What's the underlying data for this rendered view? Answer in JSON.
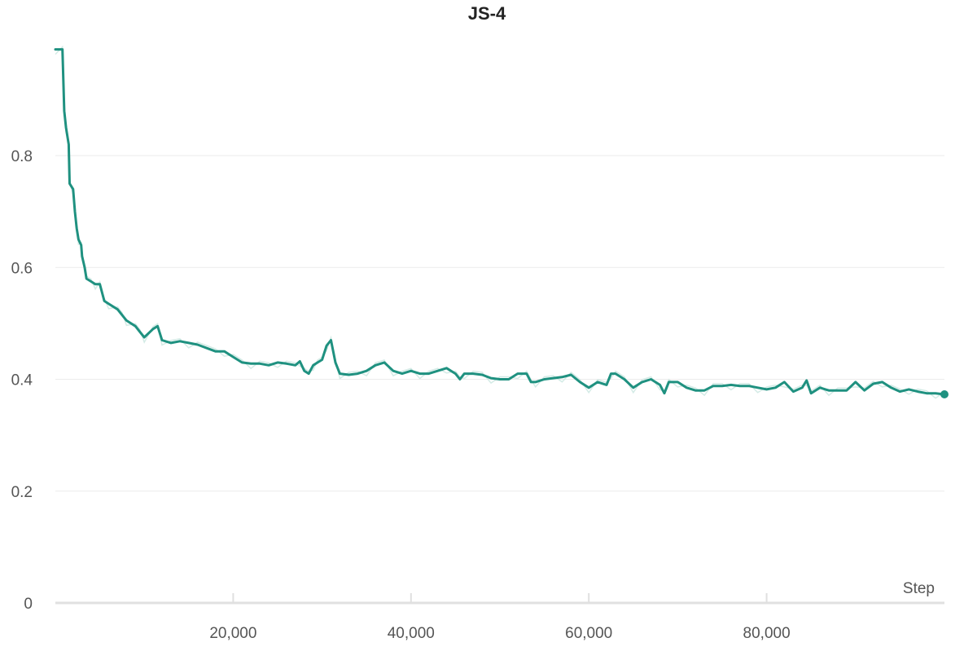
{
  "chart_data": {
    "type": "line",
    "title": "JS-4",
    "xlabel": "Step",
    "ylabel": "",
    "xlim": [
      0,
      100000
    ],
    "ylim": [
      0,
      1.0
    ],
    "x_ticks": [
      20000,
      40000,
      60000,
      80000
    ],
    "x_tick_labels": [
      "20,000",
      "40,000",
      "60,000",
      "80,000"
    ],
    "y_ticks": [
      0,
      0.2,
      0.4,
      0.6,
      0.8
    ],
    "y_tick_labels": [
      "0",
      "0.2",
      "0.4",
      "0.6",
      "0.8"
    ],
    "grid": true,
    "legend": "none",
    "colors": {
      "line": "#1f9180",
      "raw": "#c9e6e0"
    },
    "series": [
      {
        "x": [
          0,
          800,
          1000,
          1200,
          1500,
          1600,
          2000,
          2200,
          2400,
          2600,
          2900,
          3000,
          3300,
          3500,
          4000,
          4500,
          5000,
          5500,
          6000,
          7000,
          7500,
          8000,
          9000,
          9500,
          10000,
          11000,
          11500,
          12000,
          13000,
          14000,
          15000,
          16000,
          18000,
          19000,
          20000,
          21000,
          22000,
          23000,
          24000,
          25000,
          26000,
          27000,
          27500,
          28000,
          28500,
          29000,
          29500,
          30000,
          30500,
          31000,
          31500,
          32000,
          33000,
          34000,
          35000,
          36000,
          37000,
          38000,
          39000,
          40000,
          41000,
          42000,
          43000,
          44000,
          45000,
          45500,
          46000,
          47000,
          48000,
          49000,
          50000,
          51000,
          52000,
          53000,
          53500,
          54000,
          55000,
          56000,
          57000,
          58000,
          59000,
          60000,
          61000,
          62000,
          62500,
          63000,
          64000,
          65000,
          66000,
          67000,
          68000,
          68500,
          69000,
          70000,
          71000,
          72000,
          73000,
          74000,
          75000,
          76000,
          77000,
          78000,
          79000,
          80000,
          81000,
          82000,
          83000,
          84000,
          84500,
          85000,
          86000,
          87000,
          88000,
          89000,
          90000,
          91000,
          92000,
          93000,
          94000,
          95000,
          96000,
          97000,
          98000,
          99000,
          100000
        ],
        "y": [
          0.99,
          0.99,
          0.88,
          0.85,
          0.82,
          0.75,
          0.74,
          0.7,
          0.67,
          0.65,
          0.64,
          0.62,
          0.6,
          0.58,
          0.575,
          0.57,
          0.57,
          0.54,
          0.535,
          0.525,
          0.515,
          0.505,
          0.495,
          0.485,
          0.475,
          0.49,
          0.495,
          0.47,
          0.465,
          0.468,
          0.465,
          0.462,
          0.45,
          0.45,
          0.44,
          0.43,
          0.428,
          0.428,
          0.425,
          0.43,
          0.428,
          0.425,
          0.432,
          0.415,
          0.41,
          0.425,
          0.43,
          0.435,
          0.46,
          0.47,
          0.43,
          0.41,
          0.408,
          0.41,
          0.415,
          0.425,
          0.43,
          0.415,
          0.41,
          0.415,
          0.41,
          0.41,
          0.415,
          0.42,
          0.41,
          0.4,
          0.41,
          0.41,
          0.408,
          0.402,
          0.4,
          0.4,
          0.41,
          0.41,
          0.395,
          0.395,
          0.4,
          0.402,
          0.404,
          0.408,
          0.395,
          0.385,
          0.395,
          0.39,
          0.41,
          0.41,
          0.4,
          0.385,
          0.395,
          0.4,
          0.39,
          0.375,
          0.395,
          0.395,
          0.385,
          0.38,
          0.38,
          0.388,
          0.388,
          0.39,
          0.388,
          0.388,
          0.385,
          0.382,
          0.385,
          0.395,
          0.378,
          0.385,
          0.398,
          0.375,
          0.385,
          0.38,
          0.38,
          0.38,
          0.395,
          0.38,
          0.392,
          0.395,
          0.385,
          0.378,
          0.382,
          0.378,
          0.375,
          0.375,
          0.373
        ]
      }
    ]
  }
}
